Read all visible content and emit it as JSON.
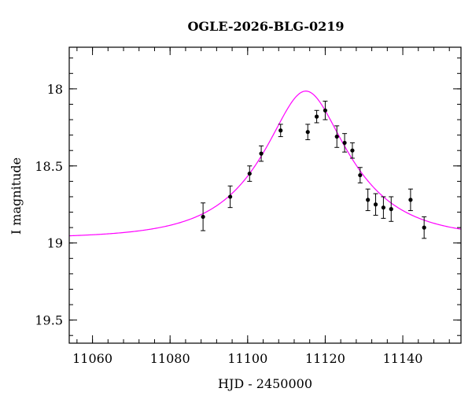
{
  "chart_data": {
    "type": "scatter",
    "title": "OGLE-2026-BLG-0219",
    "xlabel": "HJD - 2450000",
    "ylabel": "I magnitude",
    "xlim": [
      11054,
      11155
    ],
    "ylim": [
      19.65,
      17.73
    ],
    "y_inverted": true,
    "x_major_ticks": [
      11060,
      11080,
      11100,
      11120,
      11140
    ],
    "x_minor_step": 4,
    "y_major_ticks": [
      18,
      18.5,
      19,
      19.5
    ],
    "y_minor_step": 0.1,
    "x_tick_labels": [
      "11060",
      "11080",
      "11100",
      "11120",
      "11140"
    ],
    "y_tick_labels": [
      "18",
      "18.5",
      "19",
      "19.5"
    ],
    "series": [
      {
        "name": "data",
        "marker": "point",
        "x": [
          11088.5,
          11095.5,
          11100.5,
          11103.5,
          11108.5,
          11115.5,
          11117.8,
          11120,
          11123,
          11125,
          11127,
          11129,
          11131,
          11133,
          11135,
          11137,
          11142,
          11145.5
        ],
        "y": [
          18.83,
          18.7,
          18.55,
          18.42,
          18.27,
          18.28,
          18.18,
          18.14,
          18.31,
          18.35,
          18.4,
          18.56,
          18.72,
          18.75,
          18.77,
          18.78,
          18.72,
          18.9
        ],
        "err": [
          0.09,
          0.07,
          0.05,
          0.05,
          0.04,
          0.05,
          0.04,
          0.06,
          0.07,
          0.06,
          0.05,
          0.05,
          0.07,
          0.07,
          0.07,
          0.08,
          0.07,
          0.07
        ]
      },
      {
        "name": "model",
        "type": "line",
        "color": "#ff00ff",
        "description": "point-lens fit",
        "t0": 11115,
        "tE": 20,
        "u0": 0.445,
        "baseline_mag": 18.97
      }
    ]
  }
}
